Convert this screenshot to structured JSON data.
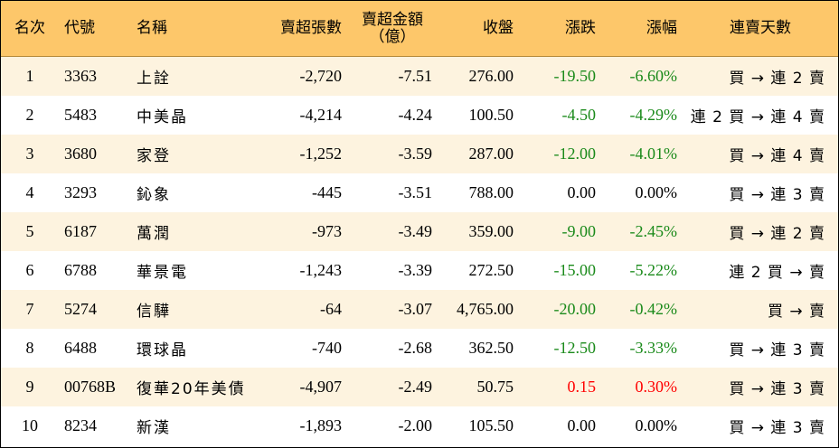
{
  "headers": {
    "rank": "名次",
    "code": "代號",
    "name": "名稱",
    "sell_volume": "賣超張數",
    "sell_amount_line1": "賣超金額",
    "sell_amount_line2": "（億）",
    "close": "收盤",
    "change": "漲跌",
    "change_pct": "漲幅",
    "streak": "連賣天數"
  },
  "colors": {
    "header_bg": "#fdc76a",
    "stripe_bg": "#fdf3df",
    "up": "#ff0000",
    "down": "#1a8a1a"
  },
  "rows": [
    {
      "rank": "1",
      "code": "3363",
      "name": "上詮",
      "sell_volume": "-2,720",
      "sell_amount": "-7.51",
      "close": "276.00",
      "change": "-19.50",
      "change_pct": "-6.60%",
      "dir": "down",
      "streak": "買 → 連 2 賣"
    },
    {
      "rank": "2",
      "code": "5483",
      "name": "中美晶",
      "sell_volume": "-4,214",
      "sell_amount": "-4.24",
      "close": "100.50",
      "change": "-4.50",
      "change_pct": "-4.29%",
      "dir": "down",
      "streak": "連 2 買 → 連 4 賣"
    },
    {
      "rank": "3",
      "code": "3680",
      "name": "家登",
      "sell_volume": "-1,252",
      "sell_amount": "-3.59",
      "close": "287.00",
      "change": "-12.00",
      "change_pct": "-4.01%",
      "dir": "down",
      "streak": "買 → 連 4 賣"
    },
    {
      "rank": "4",
      "code": "3293",
      "name": "鈊象",
      "sell_volume": "-445",
      "sell_amount": "-3.51",
      "close": "788.00",
      "change": "0.00",
      "change_pct": "0.00%",
      "dir": "flat",
      "streak": "買 → 連 3 賣"
    },
    {
      "rank": "5",
      "code": "6187",
      "name": "萬潤",
      "sell_volume": "-973",
      "sell_amount": "-3.49",
      "close": "359.00",
      "change": "-9.00",
      "change_pct": "-2.45%",
      "dir": "down",
      "streak": "買 → 連 2 賣"
    },
    {
      "rank": "6",
      "code": "6788",
      "name": "華景電",
      "sell_volume": "-1,243",
      "sell_amount": "-3.39",
      "close": "272.50",
      "change": "-15.00",
      "change_pct": "-5.22%",
      "dir": "down",
      "streak": "連 2 買 → 賣"
    },
    {
      "rank": "7",
      "code": "5274",
      "name": "信驊",
      "sell_volume": "-64",
      "sell_amount": "-3.07",
      "close": "4,765.00",
      "change": "-20.00",
      "change_pct": "-0.42%",
      "dir": "down",
      "streak": "買 → 賣"
    },
    {
      "rank": "8",
      "code": "6488",
      "name": "環球晶",
      "sell_volume": "-740",
      "sell_amount": "-2.68",
      "close": "362.50",
      "change": "-12.50",
      "change_pct": "-3.33%",
      "dir": "down",
      "streak": "買 → 連 3 賣"
    },
    {
      "rank": "9",
      "code": "00768B",
      "name": "復華20年美債",
      "sell_volume": "-4,907",
      "sell_amount": "-2.49",
      "close": "50.75",
      "change": "0.15",
      "change_pct": "0.30%",
      "dir": "up",
      "streak": "買 → 連 3 賣"
    },
    {
      "rank": "10",
      "code": "8234",
      "name": "新漢",
      "sell_volume": "-1,893",
      "sell_amount": "-2.00",
      "close": "105.50",
      "change": "0.00",
      "change_pct": "0.00%",
      "dir": "flat",
      "streak": "買 → 連 3 賣"
    }
  ]
}
